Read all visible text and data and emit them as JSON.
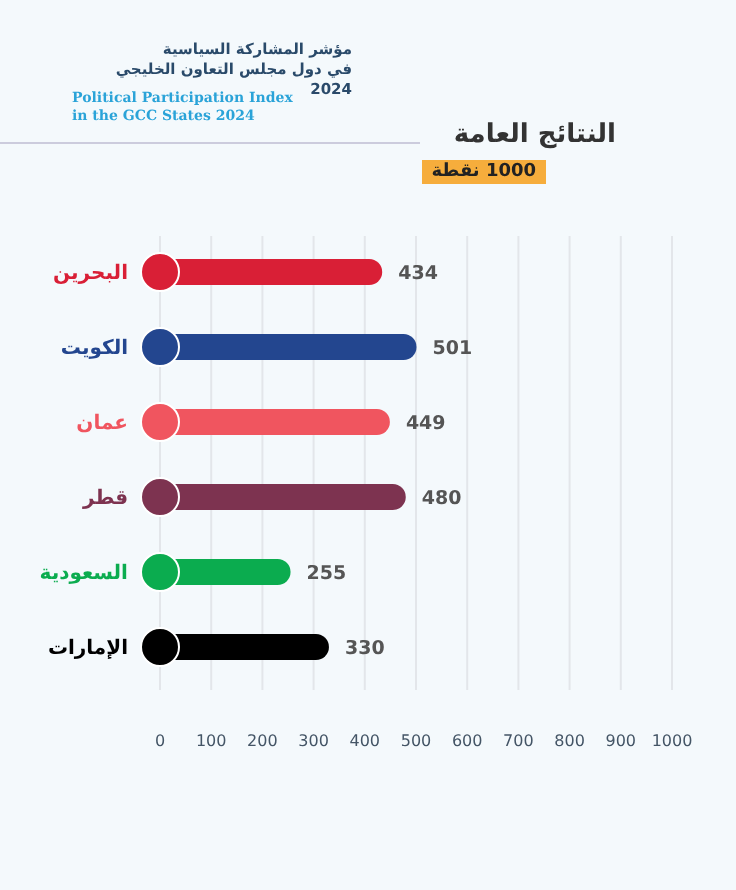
{
  "chart_data": {
    "type": "bar",
    "orientation": "horizontal",
    "title": "مؤشر المشاركة السياسية\nفي دول مجلس التعاون الخليجي 2024",
    "subtitle": "Political Participation Index\nin the GCC States 2024",
    "annotations": [
      "النتائج العامة",
      "1000 نقطة"
    ],
    "categories": [
      "البحرين",
      "الكويت",
      "عمان",
      "قطر",
      "السعودية",
      "الإمارات"
    ],
    "values": [
      434,
      501,
      449,
      480,
      255,
      330
    ],
    "colors": [
      "#d91f36",
      "#23468f",
      "#f0555f",
      "#7d3350",
      "#0bac4f",
      "#000000"
    ],
    "xlim": [
      0,
      1000
    ],
    "xticks": [
      0,
      100,
      200,
      300,
      400,
      500,
      600,
      700,
      800,
      900,
      1000
    ],
    "grid": "x",
    "data_labels": true
  }
}
